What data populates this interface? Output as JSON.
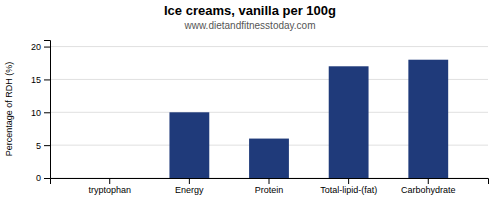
{
  "chart_data": {
    "type": "bar",
    "title": "Ice creams, vanilla per 100g",
    "subtitle": "www.dietandfitnesstoday.com",
    "categories": [
      "tryptophan",
      "Energy",
      "Protein",
      "Total-lipid-(fat)",
      "Carbohydrate"
    ],
    "values": [
      0,
      10,
      6,
      17,
      18
    ],
    "color": "#1F3A7A",
    "ylabel": "Percentage of RDH (%)",
    "ylim": [
      0,
      21
    ],
    "yticks": [
      0,
      5,
      10,
      15,
      20
    ],
    "grid": true
  }
}
